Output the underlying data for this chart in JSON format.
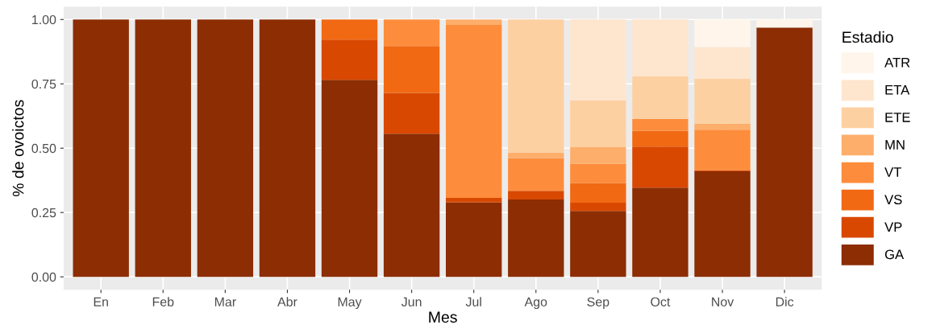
{
  "chart_data": {
    "type": "bar",
    "stacked": true,
    "xlabel": "Mes",
    "ylabel": "% de ovoictos",
    "legend_title": "Estadio",
    "legend": "right",
    "grid": true,
    "categories": [
      "En",
      "Feb",
      "Mar",
      "Abr",
      "May",
      "Jun",
      "Jul",
      "Ago",
      "Sep",
      "Oct",
      "Nov",
      "Dic"
    ],
    "ylim": [
      -0.05,
      1.05
    ],
    "yticks": [
      {
        "value": 0,
        "label": "0.00"
      },
      {
        "value": 0.25,
        "label": "0.25"
      },
      {
        "value": 0.5,
        "label": "0.50"
      },
      {
        "value": 0.75,
        "label": "0.75"
      },
      {
        "value": 1,
        "label": "1.00"
      }
    ],
    "series": [
      {
        "name": "GA",
        "color": "#8c2d04",
        "values": [
          1,
          1,
          1,
          1,
          0.766,
          0.556,
          0.29,
          0.301,
          0.256,
          0.347,
          0.41,
          0.969
        ]
      },
      {
        "name": "VP",
        "color": "#d94801",
        "values": [
          0,
          0,
          0,
          0,
          0.156,
          0.159,
          0.017,
          0.033,
          0.032,
          0.159,
          0.005,
          0
        ]
      },
      {
        "name": "VS",
        "color": "#f16913",
        "values": [
          0,
          0,
          0,
          0,
          0.078,
          0.182,
          0,
          0,
          0.076,
          0.061,
          0,
          0
        ]
      },
      {
        "name": "VT",
        "color": "#fd8d3c",
        "values": [
          0,
          0,
          0,
          0,
          0,
          0.103,
          0.672,
          0.127,
          0.076,
          0.047,
          0.157,
          0
        ]
      },
      {
        "name": "MN",
        "color": "#fdae6b",
        "values": [
          0,
          0,
          0,
          0,
          0,
          0,
          0.021,
          0.022,
          0.064,
          0,
          0.023,
          0
        ]
      },
      {
        "name": "ETE",
        "color": "#fdd0a2",
        "values": [
          0,
          0,
          0,
          0,
          0,
          0,
          0,
          0.517,
          0.182,
          0.165,
          0.175,
          0
        ]
      },
      {
        "name": "ETA",
        "color": "#fee6ce",
        "values": [
          0,
          0,
          0,
          0,
          0,
          0,
          0,
          0,
          0.314,
          0.221,
          0.123,
          0
        ]
      },
      {
        "name": "ATR",
        "color": "#fff5eb",
        "values": [
          0,
          0,
          0,
          0,
          0,
          0,
          0,
          0,
          0,
          0,
          0.107,
          0.031
        ]
      }
    ]
  }
}
